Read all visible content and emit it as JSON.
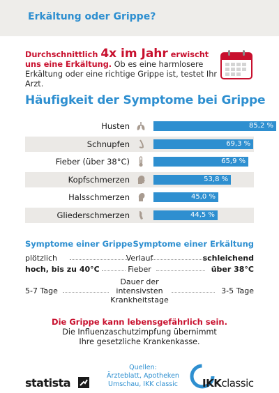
{
  "header": {
    "title": "Erkältung oder Grippe?"
  },
  "intro": {
    "lead_1": "Durchschnittlich ",
    "lead_big": "4x im Jahr",
    "lead_2": " erwischt",
    "lead_3": "uns eine Erkältung.",
    "rest": " Ob es eine harmlosere Erkältung oder eine richtige Grippe ist, testet Ihr Arzt.",
    "icon": "calendar-icon"
  },
  "chart_data": {
    "type": "bar",
    "orientation": "horizontal",
    "title": "Häufigkeit der Symptome bei Grippe",
    "categories": [
      "Husten",
      "Schnupfen",
      "Fieber (über 38°C)",
      "Kopfschmerzen",
      "Halsschmerzen",
      "Gliederschmerzen"
    ],
    "values": [
      85.2,
      69.3,
      65.9,
      53.8,
      45.0,
      44.5
    ],
    "value_labels": [
      "85,2 %",
      "69,3 %",
      "65,9 %",
      "53,8 %",
      "45,0 %",
      "44,5 %"
    ],
    "icons": [
      "lungs-icon",
      "nose-icon",
      "thermometer-icon",
      "head-icon",
      "throat-icon",
      "limb-icon"
    ],
    "xlim": [
      0,
      85.2
    ],
    "color": "#2e8fd0"
  },
  "comparison": {
    "left_header": "Symptome einer Grippe",
    "right_header": "Symptome einer Erkältung",
    "rows": [
      {
        "left": "plötzlich",
        "middle": "Verlauf",
        "right": "schleichend"
      },
      {
        "left": "hoch, bis zu 40°C",
        "middle": "Fieber",
        "right": "über 38°C"
      },
      {
        "left": "5-7 Tage",
        "middle": "Dauer der intensivsten Krankheitstage",
        "right": "3-5 Tage"
      }
    ]
  },
  "warning": {
    "headline": "Die Grippe kann lebensgefährlich sein.",
    "text_1": "Die Influenzaschutzimpfung übernimmt",
    "text_2": "Ihre gesetzliche Krankenkasse."
  },
  "footer": {
    "brand": "statista",
    "sources_title": "Quellen:",
    "sources_1": "Ärzteblatt, Apotheken",
    "sources_2": "Umschau, IKK classic",
    "ikk_1": "IKK",
    "ikk_2": "classic"
  },
  "colors": {
    "accent": "#2e8fd0",
    "warning": "#c8102e",
    "shade": "#ebe9e6"
  }
}
